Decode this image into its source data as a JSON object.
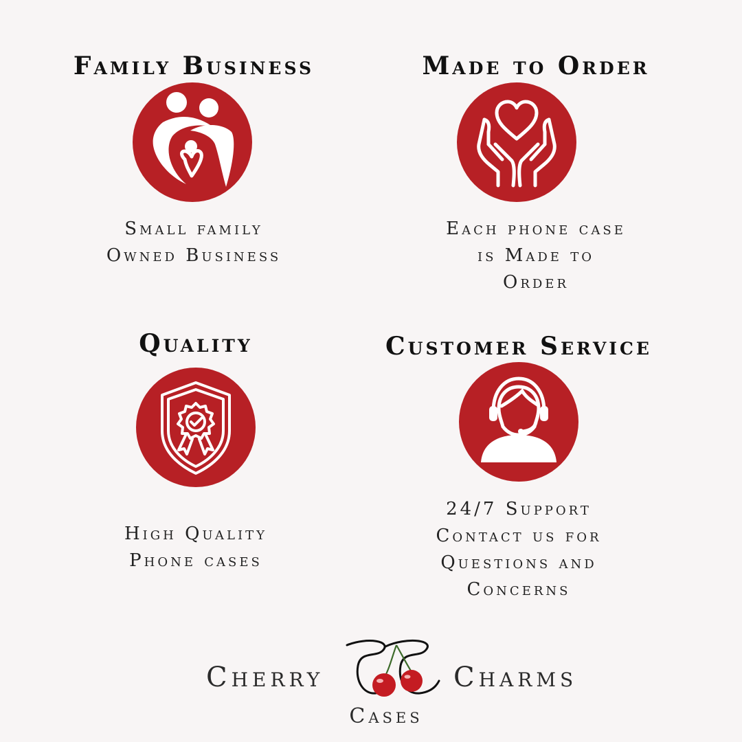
{
  "features": [
    {
      "title": "Family Business",
      "icon": "family-icon",
      "lines": [
        "Small family",
        "Owned Business"
      ]
    },
    {
      "title": "Made to Order",
      "icon": "heart-hands-icon",
      "lines": [
        "Each phone case",
        "is Made to",
        "Order"
      ]
    },
    {
      "title": "Quality",
      "icon": "quality-shield-icon",
      "lines": [
        "High Quality",
        "Phone cases"
      ]
    },
    {
      "title": "Customer Service",
      "icon": "headset-agent-icon",
      "lines": [
        "24/7 Support",
        "Contact us for",
        "Questions and",
        "Concerns"
      ]
    }
  ],
  "logo": {
    "left_word": "Cherry",
    "right_word": "Charms",
    "sub_word": "Cases",
    "monogram_icon": "cherry-monogram-icon"
  },
  "colors": {
    "accent": "#b72025",
    "background": "#f8f5f5",
    "text": "#111111"
  }
}
